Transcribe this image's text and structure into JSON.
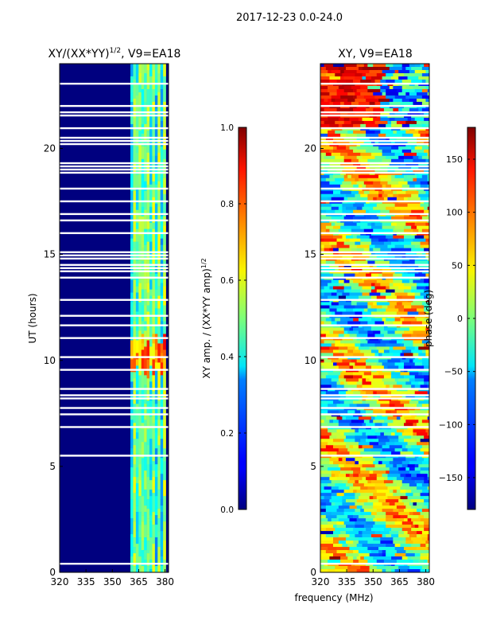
{
  "suptitle": "2017-12-23 0.0-24.0",
  "colors": {
    "background": "#00007f",
    "frame": "#000000",
    "gap": "#ffffff"
  },
  "chart_data": [
    {
      "type": "heatmap",
      "id": "amp",
      "title": "XY/(XX*YY)",
      "title_sup": "1/2",
      "title_suffix": ", V9=EA18",
      "xlabel": "",
      "ylabel": "UT (hours)",
      "xlim": [
        320,
        382
      ],
      "ylim": [
        0,
        24
      ],
      "xticks": [
        320,
        335,
        350,
        365,
        380
      ],
      "yticks": [
        0,
        5,
        10,
        15,
        20
      ],
      "colormap": "jet",
      "colorbar": {
        "label": "XY amp. / (XX*YY amp)",
        "label_sup": "1/2",
        "range": [
          0.0,
          1.0
        ],
        "ticks": [
          0.0,
          0.2,
          0.4,
          0.6,
          0.8,
          1.0
        ],
        "tick_labels": [
          "0.0",
          "0.2",
          "0.4",
          "0.6",
          "0.8",
          "1.0"
        ]
      },
      "signal_band_mhz": [
        360,
        381
      ],
      "strong_band_hours": [
        9.7,
        11.2
      ]
    },
    {
      "type": "heatmap",
      "id": "phase",
      "title": "XY, V9=EA18",
      "xlabel": "frequency (MHz)",
      "ylabel": "",
      "xlim": [
        320,
        382
      ],
      "ylim": [
        0,
        24
      ],
      "xticks": [
        320,
        335,
        350,
        365,
        380
      ],
      "yticks": [
        0,
        5,
        10,
        15,
        20
      ],
      "colormap": "jet",
      "colorbar": {
        "label": "phase (deg)",
        "range": [
          -180,
          180
        ],
        "ticks": [
          -150,
          -100,
          -50,
          0,
          50,
          100,
          150
        ],
        "tick_labels": [
          "−150",
          "−100",
          "−50",
          "0",
          "50",
          "100",
          "150"
        ]
      }
    }
  ]
}
